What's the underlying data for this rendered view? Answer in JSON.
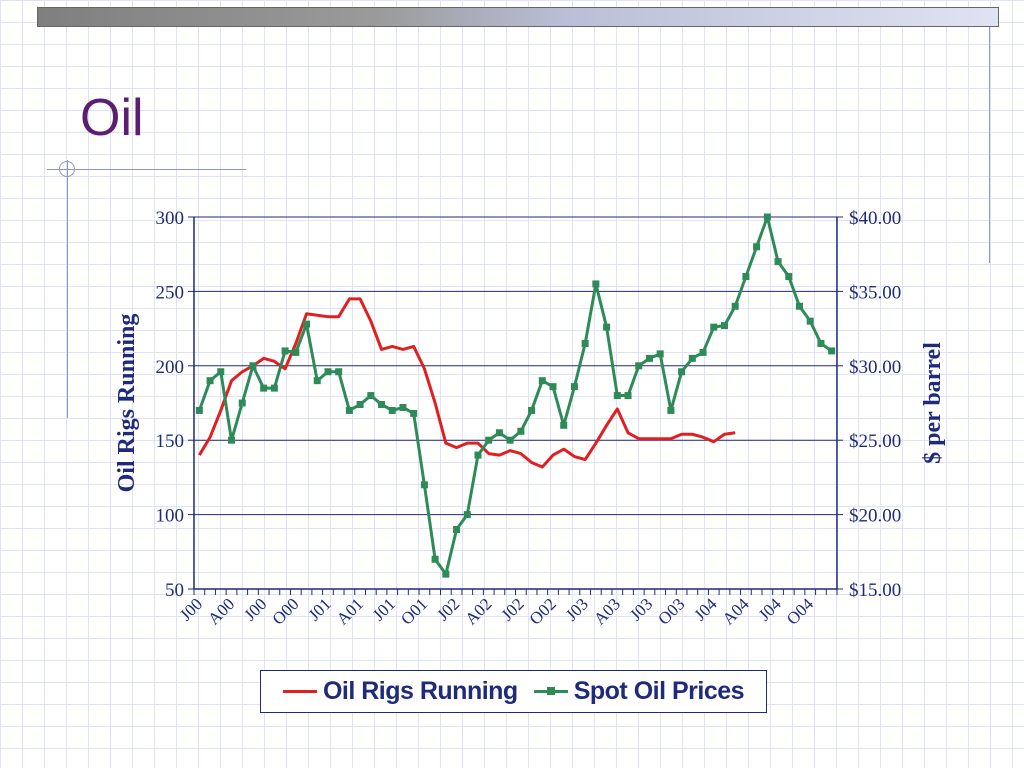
{
  "slide": {
    "title": "Oil"
  },
  "legend": {
    "rigs_label": "Oil Rigs Running",
    "price_label": "Spot Oil Prices"
  },
  "chart_data": {
    "type": "line",
    "title": "",
    "x_tick_labels": [
      "J00",
      "A00",
      "J00",
      "O00",
      "J01",
      "A01",
      "J01",
      "O01",
      "J02",
      "A02",
      "J02",
      "O02",
      "J03",
      "A03",
      "J03",
      "O03",
      "J04",
      "A04",
      "J04",
      "O04"
    ],
    "y_left": {
      "label": "Oil Rigs Running",
      "range": [
        50,
        300
      ],
      "ticks": [
        "50",
        "100",
        "150",
        "200",
        "250",
        "300"
      ]
    },
    "y_right": {
      "label": "$ per barrel",
      "range": [
        15,
        40
      ],
      "ticks": [
        "$15.00",
        "$20.00",
        "$25.00",
        "$30.00",
        "$35.00",
        "$40.00"
      ]
    },
    "grid": "horizontal",
    "legend_position": "bottom",
    "colors": {
      "rigs": "#e02020",
      "price": "#2e8b57",
      "axis": "#1f2a7a",
      "gridline": "#1f2a7a"
    },
    "series": [
      {
        "name": "Oil Rigs Running",
        "axis": "left",
        "marker": "none",
        "values": [
          140,
          152,
          170,
          190,
          196,
          200,
          205,
          203,
          198,
          215,
          235,
          234,
          233,
          233,
          245,
          245,
          230,
          211,
          213,
          211,
          213,
          198,
          175,
          148,
          145,
          148,
          148,
          141,
          140,
          143,
          141,
          135,
          132,
          140,
          144,
          139,
          137,
          148,
          160,
          171,
          155,
          151,
          151,
          151,
          151,
          154,
          154,
          152,
          149,
          154,
          155
        ]
      },
      {
        "name": "Spot Oil Prices",
        "axis": "right",
        "marker": "square",
        "values": [
          27.0,
          29.0,
          29.6,
          25.0,
          27.5,
          30.0,
          28.5,
          28.5,
          31.0,
          30.9,
          32.8,
          29.0,
          29.6,
          29.6,
          27.0,
          27.4,
          28.0,
          27.4,
          27.0,
          27.2,
          26.8,
          22.0,
          17.0,
          16.0,
          19.0,
          20.0,
          24.0,
          25.0,
          25.5,
          25.0,
          25.6,
          27.0,
          29.0,
          28.6,
          26.0,
          28.6,
          31.5,
          35.5,
          32.6,
          28.0,
          28.0,
          30.0,
          30.5,
          30.8,
          27.0,
          29.6,
          30.5,
          30.9,
          32.6,
          32.7,
          34.0,
          36.0,
          38.0,
          40.0,
          37.0,
          36.0,
          34.0,
          33.0,
          31.5,
          31.0
        ]
      }
    ]
  }
}
